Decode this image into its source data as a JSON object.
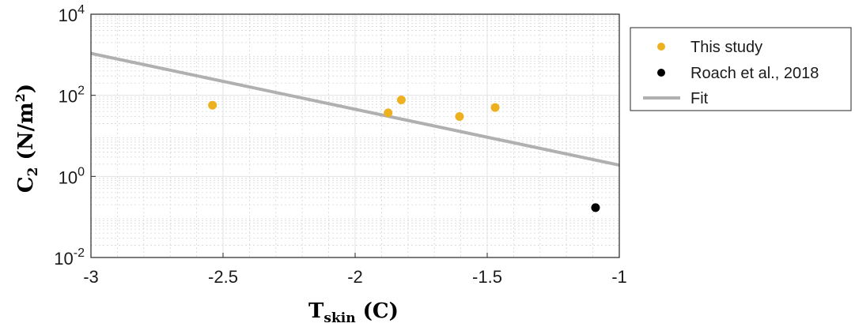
{
  "chart_data": {
    "type": "scatter",
    "xlim": [
      -3,
      -1
    ],
    "ylim": [
      0.01,
      10000
    ],
    "yscale": "log",
    "grid": true,
    "legend_placement": "outside-right-top",
    "xticks": [
      {
        "value": -3,
        "label": "-3"
      },
      {
        "value": -2.5,
        "label": "-2.5"
      },
      {
        "value": -2,
        "label": "-2"
      },
      {
        "value": -1.5,
        "label": "-1.5"
      },
      {
        "value": -1,
        "label": "-1"
      }
    ],
    "yticks": [
      {
        "value": 0.01,
        "base": "10",
        "exp": "-2"
      },
      {
        "value": 1,
        "base": "10",
        "exp": "0"
      },
      {
        "value": 100,
        "base": "10",
        "exp": "2"
      },
      {
        "value": 10000,
        "base": "10",
        "exp": "4"
      }
    ],
    "xlabel": {
      "main": "T",
      "sub": "skin",
      "rest": " (C)"
    },
    "ylabel": {
      "main": "C",
      "sub": "2",
      "rest": " (N/m",
      "sup": "2",
      "end": ")"
    },
    "series": [
      {
        "name": "This study",
        "kind": "scatter",
        "color": "#EDB120",
        "points": [
          {
            "x": -2.54,
            "y": 57
          },
          {
            "x": -1.875,
            "y": 37
          },
          {
            "x": -1.825,
            "y": 77
          },
          {
            "x": -1.605,
            "y": 30
          },
          {
            "x": -1.47,
            "y": 50
          }
        ]
      },
      {
        "name": "Roach et al., 2018",
        "kind": "scatter",
        "color": "#000000",
        "points": [
          {
            "x": -1.09,
            "y": 0.17
          }
        ]
      },
      {
        "name": "Fit",
        "kind": "line",
        "color": "#b0b0b0",
        "points": [
          {
            "x": -3,
            "y": 1080
          },
          {
            "x": -1,
            "y": 1.9
          }
        ]
      }
    ]
  }
}
